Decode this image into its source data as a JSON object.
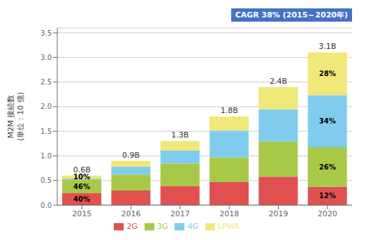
{
  "chart_data": {
    "type": "bar",
    "stacked": true,
    "categories": [
      "2015",
      "2016",
      "2017",
      "2018",
      "2019",
      "2020"
    ],
    "series": [
      {
        "name": "2G",
        "color": "#e05050",
        "values": [
          0.24,
          0.297,
          0.39,
          0.468,
          0.576,
          0.372
        ],
        "shares": [
          40,
          null,
          null,
          null,
          null,
          12
        ],
        "share_labels": [
          "40%",
          null,
          null,
          null,
          null,
          "12%"
        ]
      },
      {
        "name": "3G",
        "color": "#a8c848",
        "values": [
          0.276,
          0.324,
          0.455,
          0.504,
          0.72,
          0.806
        ],
        "shares": [
          46,
          null,
          null,
          null,
          null,
          26
        ],
        "share_labels": [
          "46%",
          null,
          null,
          null,
          null,
          "26%"
        ]
      },
      {
        "name": "4G",
        "color": "#80ccee",
        "values": [
          0.024,
          0.162,
          0.26,
          0.54,
          0.648,
          1.054
        ],
        "shares": [
          null,
          null,
          null,
          null,
          null,
          34
        ],
        "share_labels": [
          null,
          null,
          null,
          null,
          null,
          "34%"
        ]
      },
      {
        "name": "LPWA",
        "color": "#f0e878",
        "values": [
          0.06,
          0.117,
          0.195,
          0.288,
          0.456,
          0.868
        ],
        "shares": [
          10,
          null,
          null,
          null,
          null,
          28
        ],
        "share_labels": [
          "10%",
          null,
          null,
          null,
          null,
          "28%"
        ]
      }
    ],
    "totals": {
      "values": [
        0.6,
        0.9,
        1.3,
        1.8,
        2.4,
        3.1
      ],
      "value_labels": [
        "0.6B",
        "0.9B",
        "1.3B",
        "1.8B",
        "2.4B",
        "3.1B"
      ]
    },
    "ylabel": "M2M 接続数\n(単位：10 億)",
    "ylim": [
      0,
      3.6
    ],
    "yticks": [
      {
        "value": 0,
        "label": "0.0"
      },
      0.5,
      {
        "value": 1,
        "label": "1.0"
      },
      1.5,
      {
        "value": 2,
        "label": "2.0"
      },
      2.5,
      {
        "value": 3,
        "label": "3.0"
      },
      3.5
    ],
    "grid": true,
    "legend": "bottom",
    "annotations": [
      {
        "text": "CAGR 38% (2015～2020年)",
        "color": "#ffffff",
        "background": "#4472c4"
      }
    ]
  }
}
